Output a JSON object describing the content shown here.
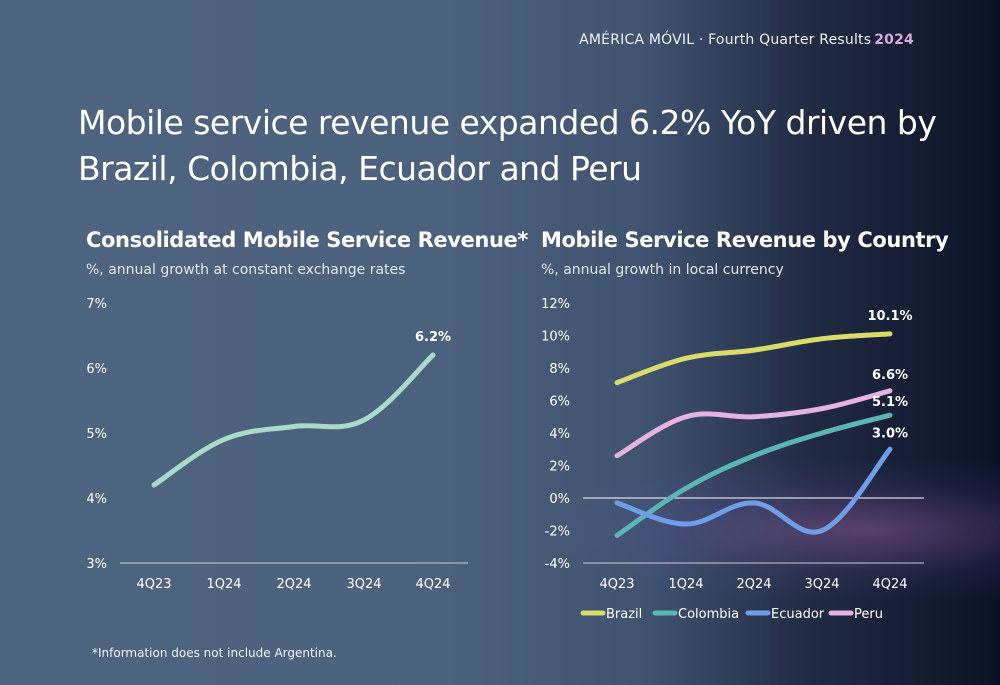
{
  "header": {
    "company": "AMÉRICA MÓVIL · Fourth Quarter Results",
    "year": "2024"
  },
  "headline": "Mobile service revenue expanded 6.2% YoY driven by Brazil, Colombia, Ecuador and Peru",
  "footnote": "*Information does not include Argentina.",
  "colors": {
    "line_consolidated": "#a8dcc8",
    "brazil": "#d9dc6a",
    "colombia": "#5ab5b4",
    "ecuador": "#6f9ee8",
    "peru": "#e6b3e0"
  },
  "chart_data": [
    {
      "type": "line",
      "title": "Consolidated Mobile Service Revenue*",
      "subtitle": "%, annual growth at constant exchange rates",
      "categories": [
        "4Q23",
        "1Q24",
        "2Q24",
        "3Q24",
        "4Q24"
      ],
      "y_ticks": [
        "7%",
        "6%",
        "5%",
        "4%",
        "3%"
      ],
      "ylim": [
        3,
        7
      ],
      "series": [
        {
          "values": [
            4.2,
            4.9,
            5.1,
            5.2,
            6.2
          ],
          "color_key": "line_consolidated"
        }
      ],
      "data_labels": [
        {
          "series": 0,
          "index": 4,
          "text": "6.2%"
        }
      ]
    },
    {
      "type": "line",
      "title": "Mobile Service Revenue by Country",
      "subtitle": "%, annual growth in local currency",
      "categories": [
        "4Q23",
        "1Q24",
        "2Q24",
        "3Q24",
        "4Q24"
      ],
      "y_ticks": [
        "12%",
        "10%",
        "8%",
        "6%",
        "4%",
        "2%",
        "0%",
        "-2%",
        "-4%"
      ],
      "ylim": [
        -4,
        12
      ],
      "series": [
        {
          "name": "Brazil",
          "values": [
            7.1,
            8.6,
            9.1,
            9.8,
            10.1
          ],
          "color_key": "brazil"
        },
        {
          "name": "Colombia",
          "values": [
            -2.3,
            0.6,
            2.6,
            4.0,
            5.1
          ],
          "color_key": "colombia"
        },
        {
          "name": "Ecuador",
          "values": [
            -0.3,
            -1.6,
            -0.3,
            -2.0,
            3.0
          ],
          "color_key": "ecuador"
        },
        {
          "name": "Peru",
          "values": [
            2.6,
            5.0,
            5.0,
            5.5,
            6.6
          ],
          "color_key": "peru"
        }
      ],
      "data_labels": [
        {
          "series": 0,
          "index": 4,
          "text": "10.1%"
        },
        {
          "series": 3,
          "index": 4,
          "text": "6.6%"
        },
        {
          "series": 1,
          "index": 4,
          "text": "5.1%"
        },
        {
          "series": 2,
          "index": 4,
          "text": "3.0%"
        }
      ],
      "legend": "bottom"
    }
  ]
}
